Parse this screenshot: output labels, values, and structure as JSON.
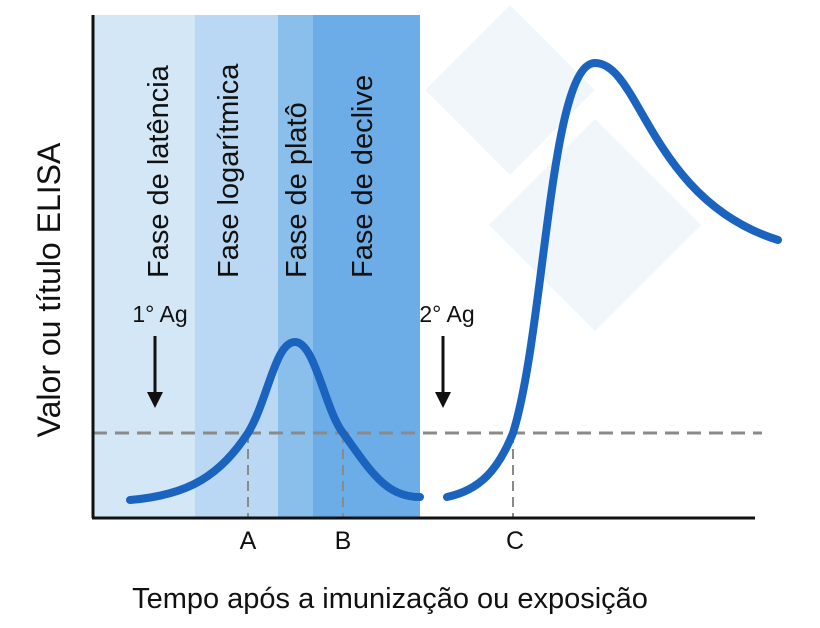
{
  "y_axis_label": "Valor ou título ELISA",
  "x_axis_label": "Tempo após a imunização ou exposição",
  "phases": [
    "Fase de latência",
    "Fase logarítmica",
    "Fase de platô",
    "Fase de declive"
  ],
  "antigens": [
    "1° Ag",
    "2° Ag"
  ],
  "markers": [
    "A",
    "B",
    "C"
  ]
}
